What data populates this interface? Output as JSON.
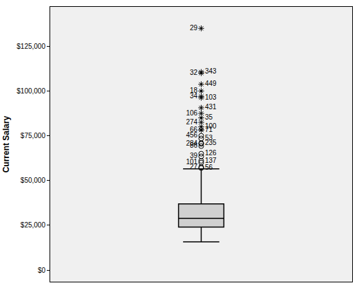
{
  "chart_data": {
    "type": "box",
    "y_label": "Current Salary",
    "box": {
      "min": 15750,
      "q1": 24000,
      "median": 28875,
      "q3": 37000,
      "max": 56500
    },
    "color": "#d0d0d0",
    "outliers": [
      {
        "value": 135000,
        "label": "29",
        "marker": "star"
      },
      {
        "value": 110625,
        "label": "343",
        "marker": "star"
      },
      {
        "value": 110000,
        "label": "32",
        "marker": "star"
      },
      {
        "value": 103750,
        "label": "449",
        "marker": "star"
      },
      {
        "value": 100000,
        "label": "18",
        "marker": "star"
      },
      {
        "value": 96250,
        "label": "103",
        "marker": "star"
      },
      {
        "value": 97000,
        "label": "34",
        "marker": "star"
      },
      {
        "value": 90625,
        "label": "431",
        "marker": "star"
      },
      {
        "value": 87500,
        "label": "106",
        "marker": "star"
      },
      {
        "value": 85000,
        "label": "35",
        "marker": "star"
      },
      {
        "value": 82500,
        "label": "274",
        "marker": "star"
      },
      {
        "value": 80000,
        "label": "100",
        "marker": "star"
      },
      {
        "value": 78250,
        "label": "66",
        "marker": "star"
      },
      {
        "value": 78250,
        "label": "71",
        "marker": "star"
      },
      {
        "value": 75000,
        "label": "456",
        "marker": "circle"
      },
      {
        "value": 73500,
        "label": "53",
        "marker": "circle"
      },
      {
        "value": 70500,
        "label": "284",
        "marker": "circle"
      },
      {
        "value": 70875,
        "label": "235",
        "marker": "circle"
      },
      {
        "value": 69250,
        "label": "86",
        "marker": "circle"
      },
      {
        "value": 65000,
        "label": "126",
        "marker": "circle"
      },
      {
        "value": 63500,
        "label": "39",
        "marker": "circle"
      },
      {
        "value": 61000,
        "label": "137",
        "marker": "circle"
      },
      {
        "value": 60000,
        "label": "101",
        "marker": "circle"
      },
      {
        "value": 57000,
        "label": "56",
        "marker": "circle"
      },
      {
        "value": 57500,
        "label": "27",
        "marker": "circle"
      }
    ],
    "ylim": [
      -6500,
      147000
    ],
    "yticks": [
      {
        "value": 0,
        "label": "$0"
      },
      {
        "value": 25000,
        "label": "$25,000"
      },
      {
        "value": 50000,
        "label": "$50,000"
      },
      {
        "value": 75000,
        "label": "$75,000"
      },
      {
        "value": 100000,
        "label": "$100,000"
      },
      {
        "value": 125000,
        "label": "$125,000"
      }
    ],
    "grid": false,
    "tick_labels": "y"
  }
}
